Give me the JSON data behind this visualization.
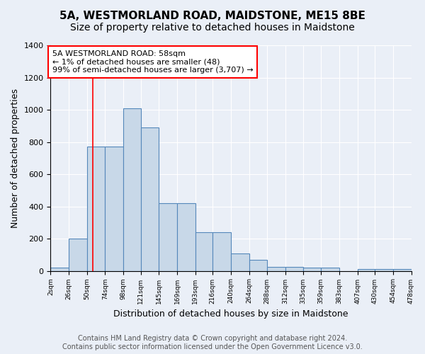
{
  "title": "5A, WESTMORLAND ROAD, MAIDSTONE, ME15 8BE",
  "subtitle": "Size of property relative to detached houses in Maidstone",
  "xlabel": "Distribution of detached houses by size in Maidstone",
  "ylabel": "Number of detached properties",
  "bar_edges": [
    2,
    26,
    50,
    74,
    98,
    121,
    145,
    169,
    193,
    216,
    240,
    264,
    288,
    312,
    335,
    359,
    383,
    407,
    430,
    454,
    478
  ],
  "bar_heights": [
    20,
    200,
    770,
    770,
    1010,
    890,
    420,
    420,
    240,
    240,
    110,
    70,
    25,
    25,
    20,
    20,
    0,
    10,
    10,
    10
  ],
  "tick_labels": [
    "2sqm",
    "26sqm",
    "50sqm",
    "74sqm",
    "98sqm",
    "121sqm",
    "145sqm",
    "169sqm",
    "193sqm",
    "216sqm",
    "240sqm",
    "264sqm",
    "288sqm",
    "312sqm",
    "335sqm",
    "359sqm",
    "383sqm",
    "407sqm",
    "430sqm",
    "454sqm",
    "478sqm"
  ],
  "bar_color": "#c8d8e8",
  "bar_edge_color": "#5588bb",
  "vline_x": 58,
  "vline_color": "red",
  "annotation_text": "5A WESTMORLAND ROAD: 58sqm\n← 1% of detached houses are smaller (48)\n99% of semi-detached houses are larger (3,707) →",
  "annotation_box_color": "white",
  "annotation_box_edge": "red",
  "ylim": [
    0,
    1400
  ],
  "yticks": [
    0,
    200,
    400,
    600,
    800,
    1000,
    1200,
    1400
  ],
  "background_color": "#eaeff7",
  "plot_background": "#eaeff7",
  "footer": "Contains HM Land Registry data © Crown copyright and database right 2024.\nContains public sector information licensed under the Open Government Licence v3.0.",
  "title_fontsize": 11,
  "subtitle_fontsize": 10,
  "xlabel_fontsize": 9,
  "ylabel_fontsize": 9,
  "annotation_fontsize": 8,
  "footer_fontsize": 7
}
